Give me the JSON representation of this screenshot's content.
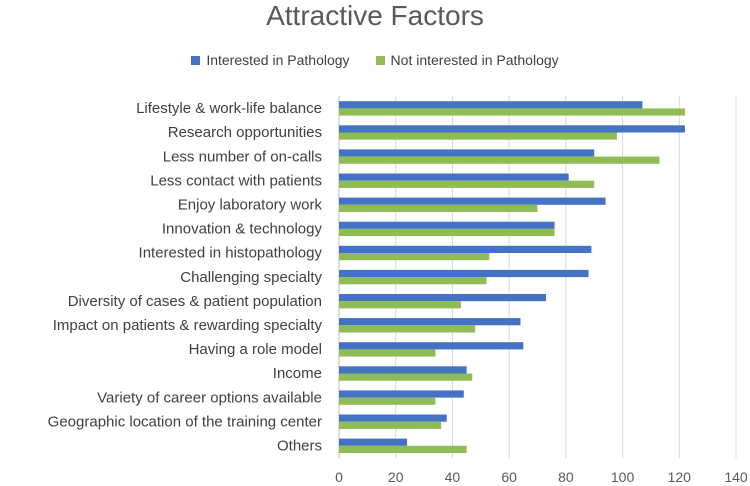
{
  "chart_data": {
    "type": "bar",
    "orientation": "horizontal",
    "title": "Attractive Factors",
    "xlabel": "",
    "ylabel": "",
    "xlim": [
      0,
      140
    ],
    "xticks": [
      0,
      20,
      40,
      60,
      80,
      100,
      120,
      140
    ],
    "grid": true,
    "legend_position": "top",
    "categories": [
      "Lifestyle & work-life balance",
      "Research opportunities",
      "Less number of on-calls",
      "Less contact with patients",
      "Enjoy laboratory work",
      "Innovation & technology",
      "Interested in histopathology",
      "Challenging specialty",
      "Diversity of cases & patient population",
      "Impact on patients & rewarding specialty",
      "Having a role model",
      "Income",
      "Variety of career options available",
      "Geographic location of the training center",
      "Others"
    ],
    "series": [
      {
        "name": "Interested in Pathology",
        "color": "#4472c4",
        "values": [
          107,
          122,
          90,
          81,
          94,
          76,
          89,
          88,
          73,
          64,
          65,
          45,
          44,
          38,
          24
        ]
      },
      {
        "name": "Not interested in Pathology",
        "color": "#8fbc55",
        "values": [
          122,
          98,
          113,
          90,
          70,
          76,
          53,
          52,
          43,
          48,
          34,
          47,
          34,
          36,
          45
        ]
      }
    ]
  }
}
